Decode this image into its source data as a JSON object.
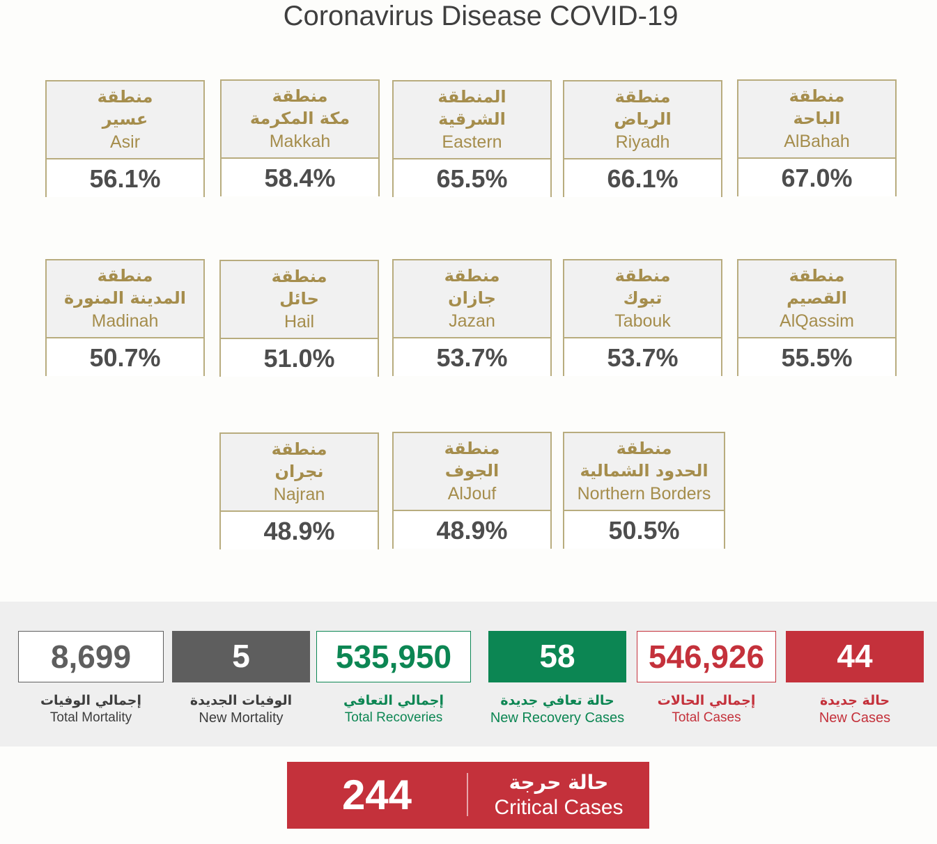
{
  "title": "Coronavirus Disease COVID-19",
  "regions": [
    {
      "ar1": "منطقة",
      "ar2": "عسير",
      "en": "Asir",
      "pct": "56.1%"
    },
    {
      "ar1": "منطقة",
      "ar2": "مكة المكرمة",
      "en": "Makkah",
      "pct": "58.4%"
    },
    {
      "ar1": "المنطقة",
      "ar2": "الشرقية",
      "en": "Eastern",
      "pct": "65.5%"
    },
    {
      "ar1": "منطقة",
      "ar2": "الرياض",
      "en": "Riyadh",
      "pct": "66.1%"
    },
    {
      "ar1": "منطقة",
      "ar2": "الباحة",
      "en": "AlBahah",
      "pct": "67.0%"
    },
    {
      "ar1": "منطقة",
      "ar2": "المدينة المنورة",
      "en": "Madinah",
      "pct": "50.7%"
    },
    {
      "ar1": "منطقة",
      "ar2": "حائل",
      "en": "Hail",
      "pct": "51.0%"
    },
    {
      "ar1": "منطقة",
      "ar2": "جازان",
      "en": "Jazan",
      "pct": "53.7%"
    },
    {
      "ar1": "منطقة",
      "ar2": "تبوك",
      "en": "Tabouk",
      "pct": "53.7%"
    },
    {
      "ar1": "منطقة",
      "ar2": "القصيم",
      "en": "AlQassim",
      "pct": "55.5%"
    },
    {
      "ar1": "منطقة",
      "ar2": "نجران",
      "en": "Najran",
      "pct": "48.9%"
    },
    {
      "ar1": "منطقة",
      "ar2": "الجوف",
      "en": "AlJouf",
      "pct": "48.9%"
    },
    {
      "ar1": "منطقة",
      "ar2": "الحدود الشمالية",
      "en": "Northern Borders",
      "pct": "50.5%"
    }
  ],
  "stats": {
    "total_mortality": {
      "value": "8,699",
      "ar": "إجمالي الوفيات",
      "en": "Total Mortality"
    },
    "new_mortality": {
      "value": "5",
      "ar": "الوفيات الجديدة",
      "en": "New Mortality"
    },
    "total_recoveries": {
      "value": "535,950",
      "ar": "إجمالي التعافي",
      "en": "Total Recoveries"
    },
    "new_recovery": {
      "value": "58",
      "ar": "حالة تعافي جديدة",
      "en": "New Recovery Cases"
    },
    "total_cases": {
      "value": "546,926",
      "ar": "إجمالي الحالات",
      "en": "Total Cases"
    },
    "new_cases": {
      "value": "44",
      "ar": "حالة جديدة",
      "en": "New Cases"
    }
  },
  "critical": {
    "value": "244",
    "ar": "حالة حرجة",
    "en": "Critical Cases"
  },
  "colors": {
    "gold": "#a58d4c",
    "gold_border": "#b8ac7e",
    "green": "#0c8653",
    "red": "#c4313b",
    "gray": "#5e5e5e"
  }
}
